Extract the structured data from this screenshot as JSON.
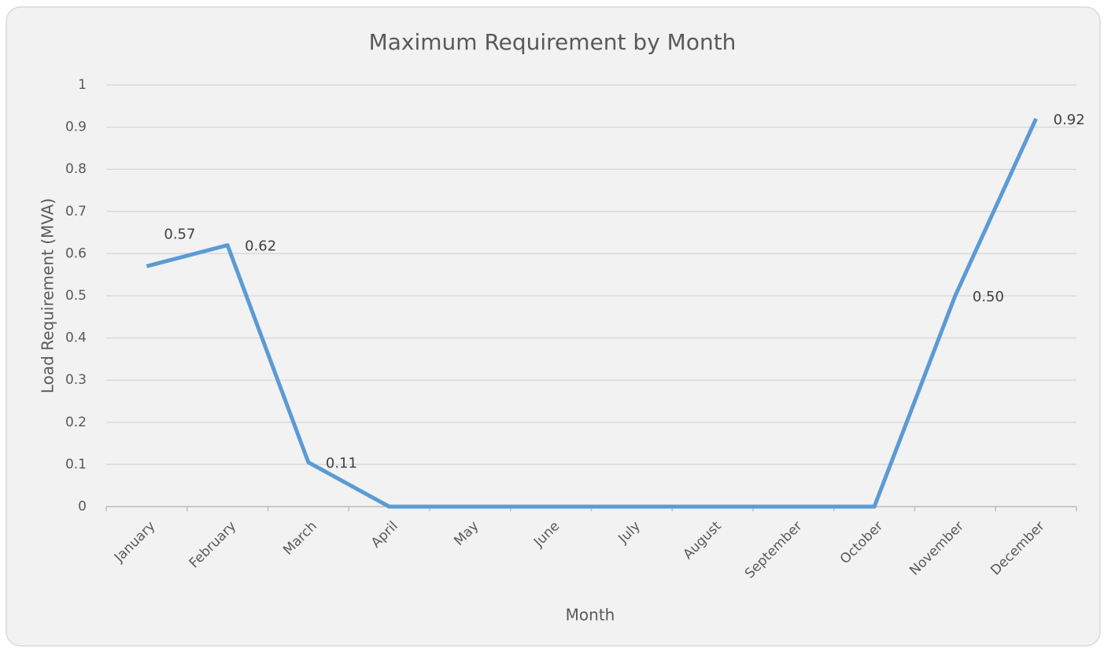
{
  "chart_data": {
    "type": "line",
    "title": "Maximum Requirement by Month",
    "xlabel": "Month",
    "ylabel": "Load Requirement (MVA)",
    "categories": [
      "January",
      "February",
      "March",
      "April",
      "May",
      "June",
      "July",
      "August",
      "September",
      "October",
      "November",
      "December"
    ],
    "series": [
      {
        "name": "Maximum Requirement",
        "color": "#5b9bd5",
        "values": [
          0.57,
          0.62,
          0.105,
          0,
          0,
          0,
          0,
          0,
          0,
          0,
          0.5,
          0.92
        ],
        "value_labels": [
          "0.57",
          "0.62",
          "0.11",
          null,
          null,
          null,
          null,
          null,
          null,
          null,
          "0.50",
          "0.92"
        ]
      }
    ],
    "ylim": [
      0,
      1
    ],
    "yticks": [
      0,
      0.1,
      0.2,
      0.3,
      0.4,
      0.5,
      0.6,
      0.7,
      0.8,
      0.9,
      1
    ],
    "grid": true
  }
}
